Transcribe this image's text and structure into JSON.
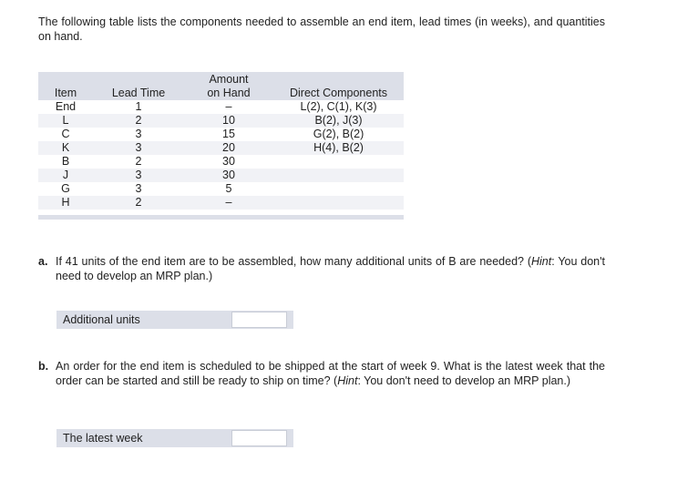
{
  "intro": "The following table lists the components needed to assemble an end item, lead times (in weeks), and quantities on hand.",
  "table": {
    "headers": [
      "Item",
      "Lead Time",
      "Amount on Hand",
      "Direct Components"
    ],
    "header_amount_line1": "Amount",
    "header_amount_line2": "on Hand",
    "rows": [
      [
        "End",
        "1",
        "–",
        "L(2), C(1), K(3)"
      ],
      [
        "L",
        "2",
        "10",
        "B(2), J(3)"
      ],
      [
        "C",
        "3",
        "15",
        "G(2), B(2)"
      ],
      [
        "K",
        "3",
        "20",
        "H(4), B(2)"
      ],
      [
        "B",
        "2",
        "30",
        ""
      ],
      [
        "J",
        "3",
        "30",
        ""
      ],
      [
        "G",
        "3",
        "5",
        ""
      ],
      [
        "H",
        "2",
        "–",
        ""
      ]
    ]
  },
  "questions": [
    {
      "label": "a.",
      "text_pre": "If 41 units of the end item are to be assembled, how many additional units of B are needed? (",
      "hint": "Hint",
      "text_post": ": You don't need to develop an MRP plan.)",
      "answer_label": "Additional units",
      "answer_value": ""
    },
    {
      "label": "b.",
      "text_pre": "An order for the end item is scheduled to be shipped at the start of week 9. What is the latest week that the order can be started and still be ready to ship on time? (",
      "hint": "Hint",
      "text_post": ": You don't need to develop an MRP plan.)",
      "answer_label": "The latest week",
      "answer_value": ""
    }
  ]
}
